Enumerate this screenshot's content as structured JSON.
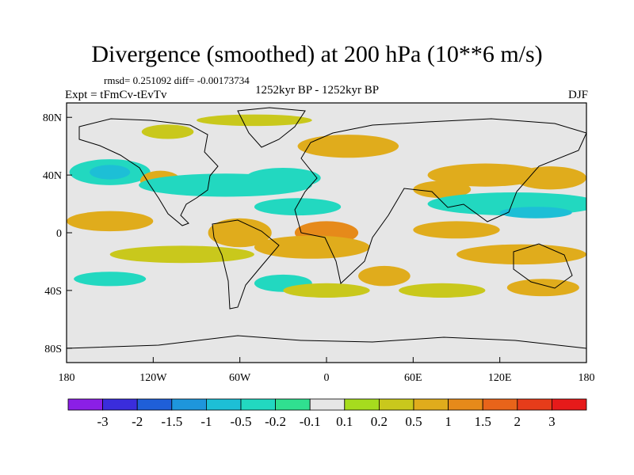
{
  "header": {
    "title": "Divergence (smoothed) at 200 hPa (10**6 m/s)",
    "stats": "rmsd= 0.251092 diff= -0.00173734",
    "experiment": "Expt = tFmCv-tEvTv",
    "period": "1252kyr BP - 1252kyr BP",
    "season": "DJF"
  },
  "chart_data": {
    "type": "heatmap",
    "title": "Divergence (smoothed) at 200 hPa (10**6 m/s)",
    "projection": "cylindrical equidistant",
    "xlim": [
      -180,
      180
    ],
    "ylim": [
      -90,
      90
    ],
    "x_ticks": [
      {
        "value": -180,
        "label": "180"
      },
      {
        "value": -120,
        "label": "120W"
      },
      {
        "value": -60,
        "label": "60W"
      },
      {
        "value": 0,
        "label": "0"
      },
      {
        "value": 60,
        "label": "60E"
      },
      {
        "value": 120,
        "label": "120E"
      },
      {
        "value": 180,
        "label": "180"
      }
    ],
    "y_ticks": [
      {
        "value": 80,
        "label": "80N"
      },
      {
        "value": 40,
        "label": "40N"
      },
      {
        "value": 0,
        "label": "0"
      },
      {
        "value": -40,
        "label": "40S"
      },
      {
        "value": -80,
        "label": "80S"
      }
    ],
    "colorbar": {
      "levels": [
        "-3",
        "-2",
        "-1.5",
        "-1",
        "-0.5",
        "-0.2",
        "-0.1",
        "0.1",
        "0.2",
        "0.5",
        "1",
        "1.5",
        "2",
        "3"
      ],
      "colors": [
        "#8b1fe6",
        "#3a2ddc",
        "#1f5fd8",
        "#1e96dc",
        "#1dbfd6",
        "#22d8c0",
        "#30e090",
        "#e6e6e6",
        "#a6dc1e",
        "#c9c81c",
        "#e0ac1c",
        "#e68a1a",
        "#e8641a",
        "#e63c1a",
        "#e61a1a"
      ]
    },
    "features": [
      {
        "lon": -150,
        "lat": 42,
        "rx": 28,
        "ry": 9,
        "value": -0.5
      },
      {
        "lon": -150,
        "lat": 42,
        "rx": 14,
        "ry": 5,
        "value": -1
      },
      {
        "lon": -115,
        "lat": 36,
        "rx": 14,
        "ry": 7,
        "value": 0.5
      },
      {
        "lon": -70,
        "lat": 33,
        "rx": 60,
        "ry": 8,
        "value": -0.5
      },
      {
        "lon": -30,
        "lat": 38,
        "rx": 26,
        "ry": 7,
        "value": -0.5
      },
      {
        "lon": -20,
        "lat": 18,
        "rx": 30,
        "ry": 6,
        "value": -0.5
      },
      {
        "lon": 15,
        "lat": 60,
        "rx": 35,
        "ry": 8,
        "value": 0.5
      },
      {
        "lon": -50,
        "lat": 78,
        "rx": 40,
        "ry": 4,
        "value": 0.2
      },
      {
        "lon": -110,
        "lat": 70,
        "rx": 18,
        "ry": 5,
        "value": 0.2
      },
      {
        "lon": 110,
        "lat": 40,
        "rx": 40,
        "ry": 8,
        "value": 0.5
      },
      {
        "lon": 155,
        "lat": 38,
        "rx": 25,
        "ry": 8,
        "value": 0.5
      },
      {
        "lon": 80,
        "lat": 30,
        "rx": 20,
        "ry": 6,
        "value": 0.5
      },
      {
        "lon": 130,
        "lat": 20,
        "rx": 60,
        "ry": 8,
        "value": -0.5
      },
      {
        "lon": 145,
        "lat": 14,
        "rx": 25,
        "ry": 4,
        "value": -1
      },
      {
        "lon": -150,
        "lat": 8,
        "rx": 30,
        "ry": 7,
        "value": 0.5
      },
      {
        "lon": -60,
        "lat": 0,
        "rx": 22,
        "ry": 10,
        "value": 0.5
      },
      {
        "lon": 0,
        "lat": 0,
        "rx": 22,
        "ry": 8,
        "value": 1
      },
      {
        "lon": 90,
        "lat": 2,
        "rx": 30,
        "ry": 6,
        "value": 0.5
      },
      {
        "lon": -10,
        "lat": -10,
        "rx": 40,
        "ry": 8,
        "value": 0.5
      },
      {
        "lon": -100,
        "lat": -15,
        "rx": 50,
        "ry": 6,
        "value": 0.2
      },
      {
        "lon": 135,
        "lat": -15,
        "rx": 45,
        "ry": 7,
        "value": 0.5
      },
      {
        "lon": -150,
        "lat": -32,
        "rx": 25,
        "ry": 5,
        "value": -0.5
      },
      {
        "lon": -30,
        "lat": -35,
        "rx": 20,
        "ry": 6,
        "value": -0.5
      },
      {
        "lon": 40,
        "lat": -30,
        "rx": 18,
        "ry": 7,
        "value": 0.5
      },
      {
        "lon": 150,
        "lat": -38,
        "rx": 25,
        "ry": 6,
        "value": 0.5
      },
      {
        "lon": 0,
        "lat": -40,
        "rx": 30,
        "ry": 5,
        "value": 0.2
      },
      {
        "lon": 80,
        "lat": -40,
        "rx": 30,
        "ry": 5,
        "value": 0.2
      }
    ]
  }
}
